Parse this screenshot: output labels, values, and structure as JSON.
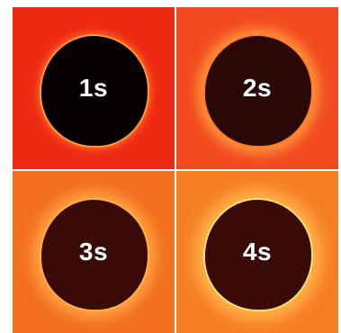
{
  "panels": [
    {
      "label": "1s"
    },
    {
      "label": "2s"
    },
    {
      "label": "3s"
    },
    {
      "label": "4s"
    }
  ],
  "colors": {
    "panel_1_background": "#ee2a14",
    "panel_2_background": "#f24a1e",
    "panel_3_background": "#f2701e",
    "panel_4_background": "#f67e22",
    "dark_region": "#2a0806"
  }
}
